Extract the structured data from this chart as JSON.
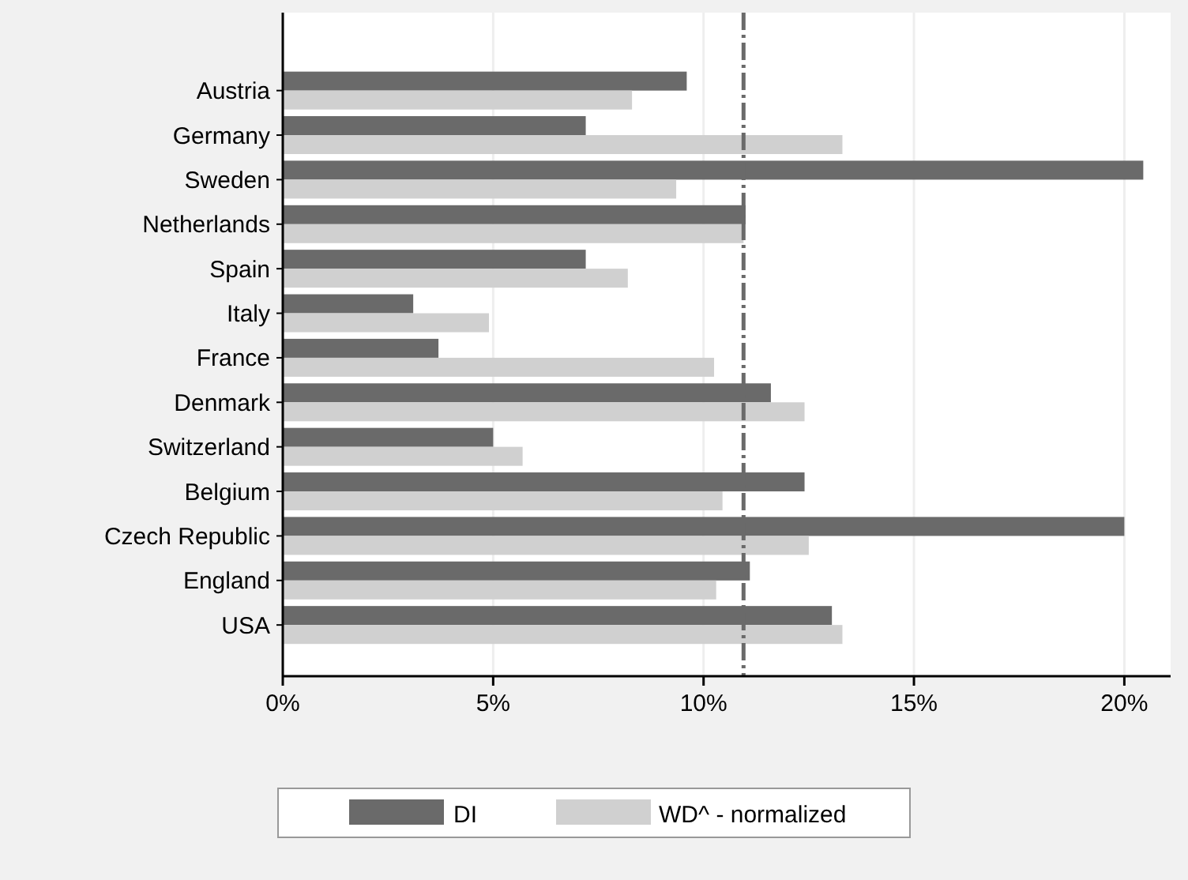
{
  "chart_data": {
    "type": "bar",
    "orientation": "horizontal",
    "categories": [
      "Austria",
      "Germany",
      "Sweden",
      "Netherlands",
      "Spain",
      "Italy",
      "France",
      "Denmark",
      "Switzerland",
      "Belgium",
      "Czech Republic",
      "England",
      "USA"
    ],
    "series": [
      {
        "name": "DI",
        "color": "#6a6a6a",
        "values": [
          9.6,
          7.2,
          20.45,
          11.0,
          7.2,
          3.1,
          3.7,
          11.6,
          5.0,
          12.4,
          20.0,
          11.1,
          13.05
        ]
      },
      {
        "name": "WD^ - normalized",
        "color": "#d0d0d0",
        "values": [
          8.3,
          13.3,
          9.35,
          10.95,
          8.2,
          4.9,
          10.25,
          12.4,
          5.7,
          10.45,
          12.5,
          10.3,
          13.3
        ]
      }
    ],
    "xlim": [
      0,
      21.1
    ],
    "xticks": [
      {
        "value": 0,
        "label": "0%"
      },
      {
        "value": 5,
        "label": "5%"
      },
      {
        "value": 10,
        "label": "10%"
      },
      {
        "value": 15,
        "label": "15%"
      },
      {
        "value": 20,
        "label": "20%"
      }
    ],
    "grid": "x",
    "legend": "bottom",
    "ref_lines": [
      {
        "axis": "x",
        "value": 10.95,
        "color": "#6a6a6a",
        "line_style": "dashed"
      }
    ]
  }
}
